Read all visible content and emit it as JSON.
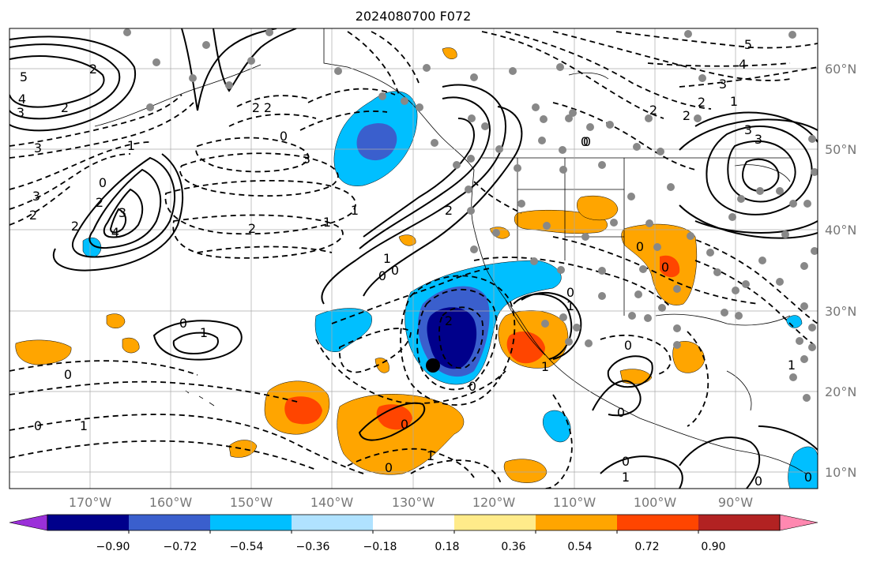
{
  "title": "2024080700 F072",
  "lon_labels": [
    "170°W",
    "160°W",
    "150°W",
    "140°W",
    "130°W",
    "120°W",
    "110°W",
    "100°W",
    "90°W"
  ],
  "lat_labels": [
    "60°N",
    "50°N",
    "40°N",
    "30°N",
    "20°N",
    "10°N"
  ],
  "colorbar": {
    "ticks": [
      "−0.90",
      "−0.72",
      "−0.54",
      "−0.36",
      "−0.18",
      "0.18",
      "0.36",
      "0.54",
      "0.72",
      "0.90"
    ],
    "colors": [
      "#9b30d9",
      "#00008b",
      "#3a5fcd",
      "#00bfff",
      "#b0e2ff",
      "#ffffff",
      "#ffeb8a",
      "#ffa500",
      "#ff4500",
      "#b22222",
      "#ff88b0"
    ]
  },
  "contour_labels": [
    "5",
    "4",
    "3",
    "2",
    "2",
    "2",
    "2",
    "3",
    "1",
    "0",
    "2",
    "3",
    "4",
    "3",
    "2",
    "3",
    "2",
    "0",
    "1",
    "1",
    "2",
    "0",
    "0",
    "1",
    "2",
    "2",
    "1",
    "3",
    "3",
    "4",
    "5",
    "2",
    "0",
    "2",
    "3",
    "0",
    "1",
    "0",
    "1",
    "0",
    "0",
    "1",
    "1",
    "2",
    "1",
    "0",
    "0",
    "0",
    "0",
    "0",
    "0",
    "1",
    "0",
    "1",
    "0",
    "0",
    "0",
    "0"
  ],
  "marker": {
    "name": "center-dot"
  }
}
